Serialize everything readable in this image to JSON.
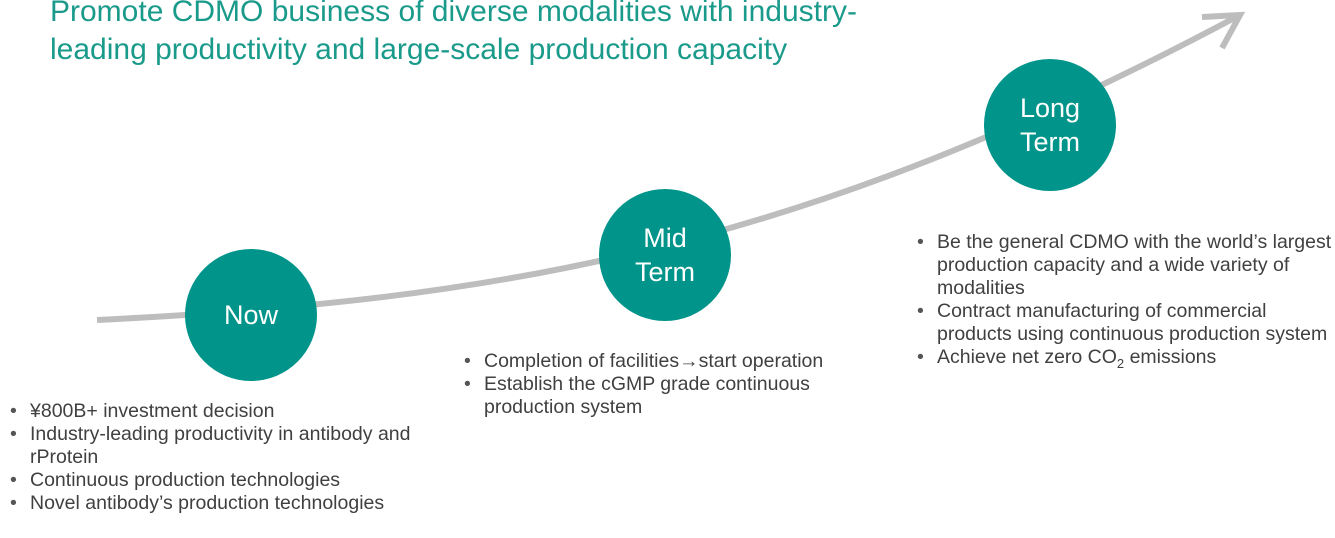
{
  "title": {
    "lines": [
      "Promote CDMO business of diverse modalities with industry-",
      "leading productivity and large-scale production capacity"
    ]
  },
  "stages": [
    {
      "label": [
        "Now"
      ],
      "items": [
        "¥800B+ investment decision",
        "Industry-leading productivity in antibody and rProtein",
        "Continuous production technologies",
        "Novel antibody’s production technologies"
      ]
    },
    {
      "label": [
        "Mid",
        "Term"
      ],
      "items": [
        "Completion of facilities→start operation",
        "Establish the cGMP grade continuous production system"
      ]
    },
    {
      "label": [
        "Long",
        "Term"
      ],
      "items": [
        "Be the general CDMO with the world’s largest production capacity and a wide variety of modalities",
        "Contract manufacturing of commercial products using continuous production system",
        {
          "pre": "Achieve net zero CO",
          "sub": "2",
          "post": " emissions"
        }
      ]
    }
  ]
}
